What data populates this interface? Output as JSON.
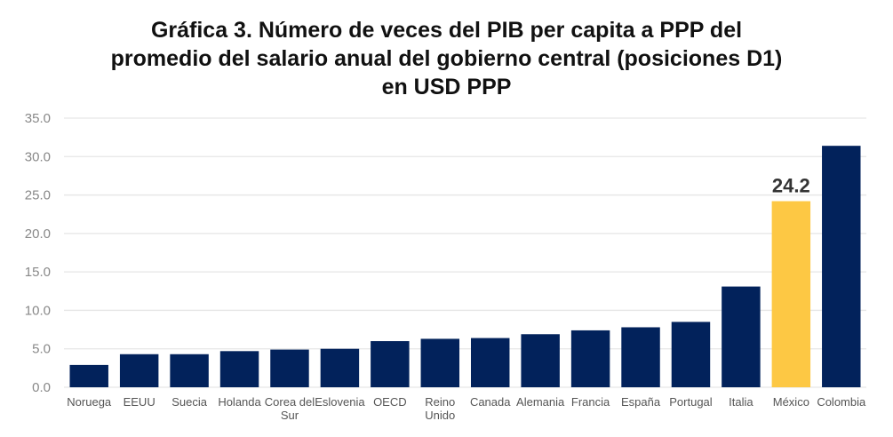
{
  "chart_data": {
    "type": "bar",
    "title_lines": [
      "Gráfica 3. Número de veces del PIB per capita a PPP del",
      "promedio del salario anual del gobierno central (posiciones D1)",
      "en USD PPP"
    ],
    "categories": [
      [
        "Noruega"
      ],
      [
        "EEUU"
      ],
      [
        "Suecia"
      ],
      [
        "Holanda"
      ],
      [
        "Corea del",
        "Sur"
      ],
      [
        "Eslovenia"
      ],
      [
        "OECD"
      ],
      [
        "Reino",
        "Unido"
      ],
      [
        "Canada"
      ],
      [
        "Alemania"
      ],
      [
        "Francia"
      ],
      [
        "España"
      ],
      [
        "Portugal"
      ],
      [
        "Italia"
      ],
      [
        "México"
      ],
      [
        "Colombia"
      ]
    ],
    "values": [
      2.9,
      4.3,
      4.3,
      4.7,
      4.9,
      5.0,
      6.0,
      6.3,
      6.4,
      6.9,
      7.4,
      7.8,
      8.5,
      13.1,
      24.2,
      31.4
    ],
    "ylim": [
      0,
      35
    ],
    "yticks": [
      "0.0",
      "5.0",
      "10.0",
      "15.0",
      "20.0",
      "25.0",
      "30.0",
      "35.0"
    ],
    "ytick_values": [
      0,
      5,
      10,
      15,
      20,
      25,
      30,
      35
    ],
    "data_labels": [
      {
        "index": 14,
        "text": "24.2"
      }
    ],
    "highlight_index": 14,
    "colors": {
      "bar": "#02225B",
      "highlight": "#FDC844",
      "grid": "#E6E6E6"
    },
    "grid": true,
    "legend": "none",
    "xlabel": "",
    "ylabel": ""
  }
}
